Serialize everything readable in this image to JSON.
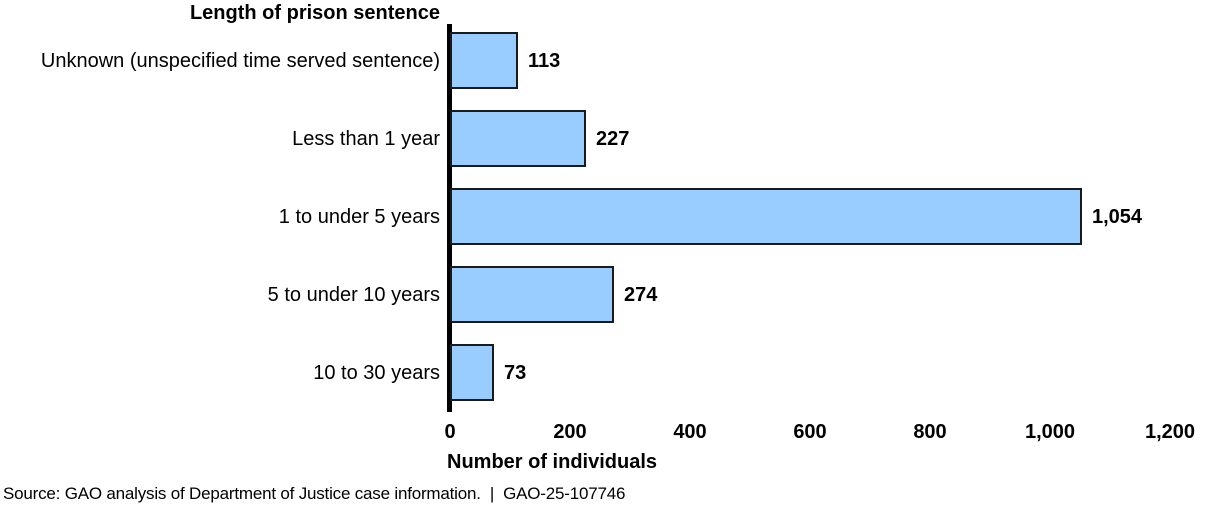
{
  "chart_data": {
    "type": "bar",
    "orientation": "horizontal",
    "title": "Length of prison sentence",
    "categories": [
      "Unknown (unspecified time served sentence)",
      "Less than 1 year",
      "1 to under 5 years",
      "5 to under 10 years",
      "10 to 30 years"
    ],
    "values": [
      113,
      227,
      1054,
      274,
      73
    ],
    "value_labels": [
      "113",
      "227",
      "1,054",
      "274",
      "73"
    ],
    "xlabel": "Number of individuals",
    "ylabel": "",
    "xlim": [
      0,
      1200
    ],
    "xticks": [
      0,
      200,
      400,
      600,
      800,
      1000,
      1200
    ],
    "xtick_labels": [
      "0",
      "200",
      "400",
      "600",
      "800",
      "1,000",
      "1,200"
    ],
    "grid": false,
    "legend": "none",
    "bar_fill_color": "#99CCFF",
    "bar_border_color": "#1a1a1a",
    "axis_color": "#000000"
  },
  "source": "Source: GAO analysis of Department of Justice case information.  |  GAO-25-107746"
}
